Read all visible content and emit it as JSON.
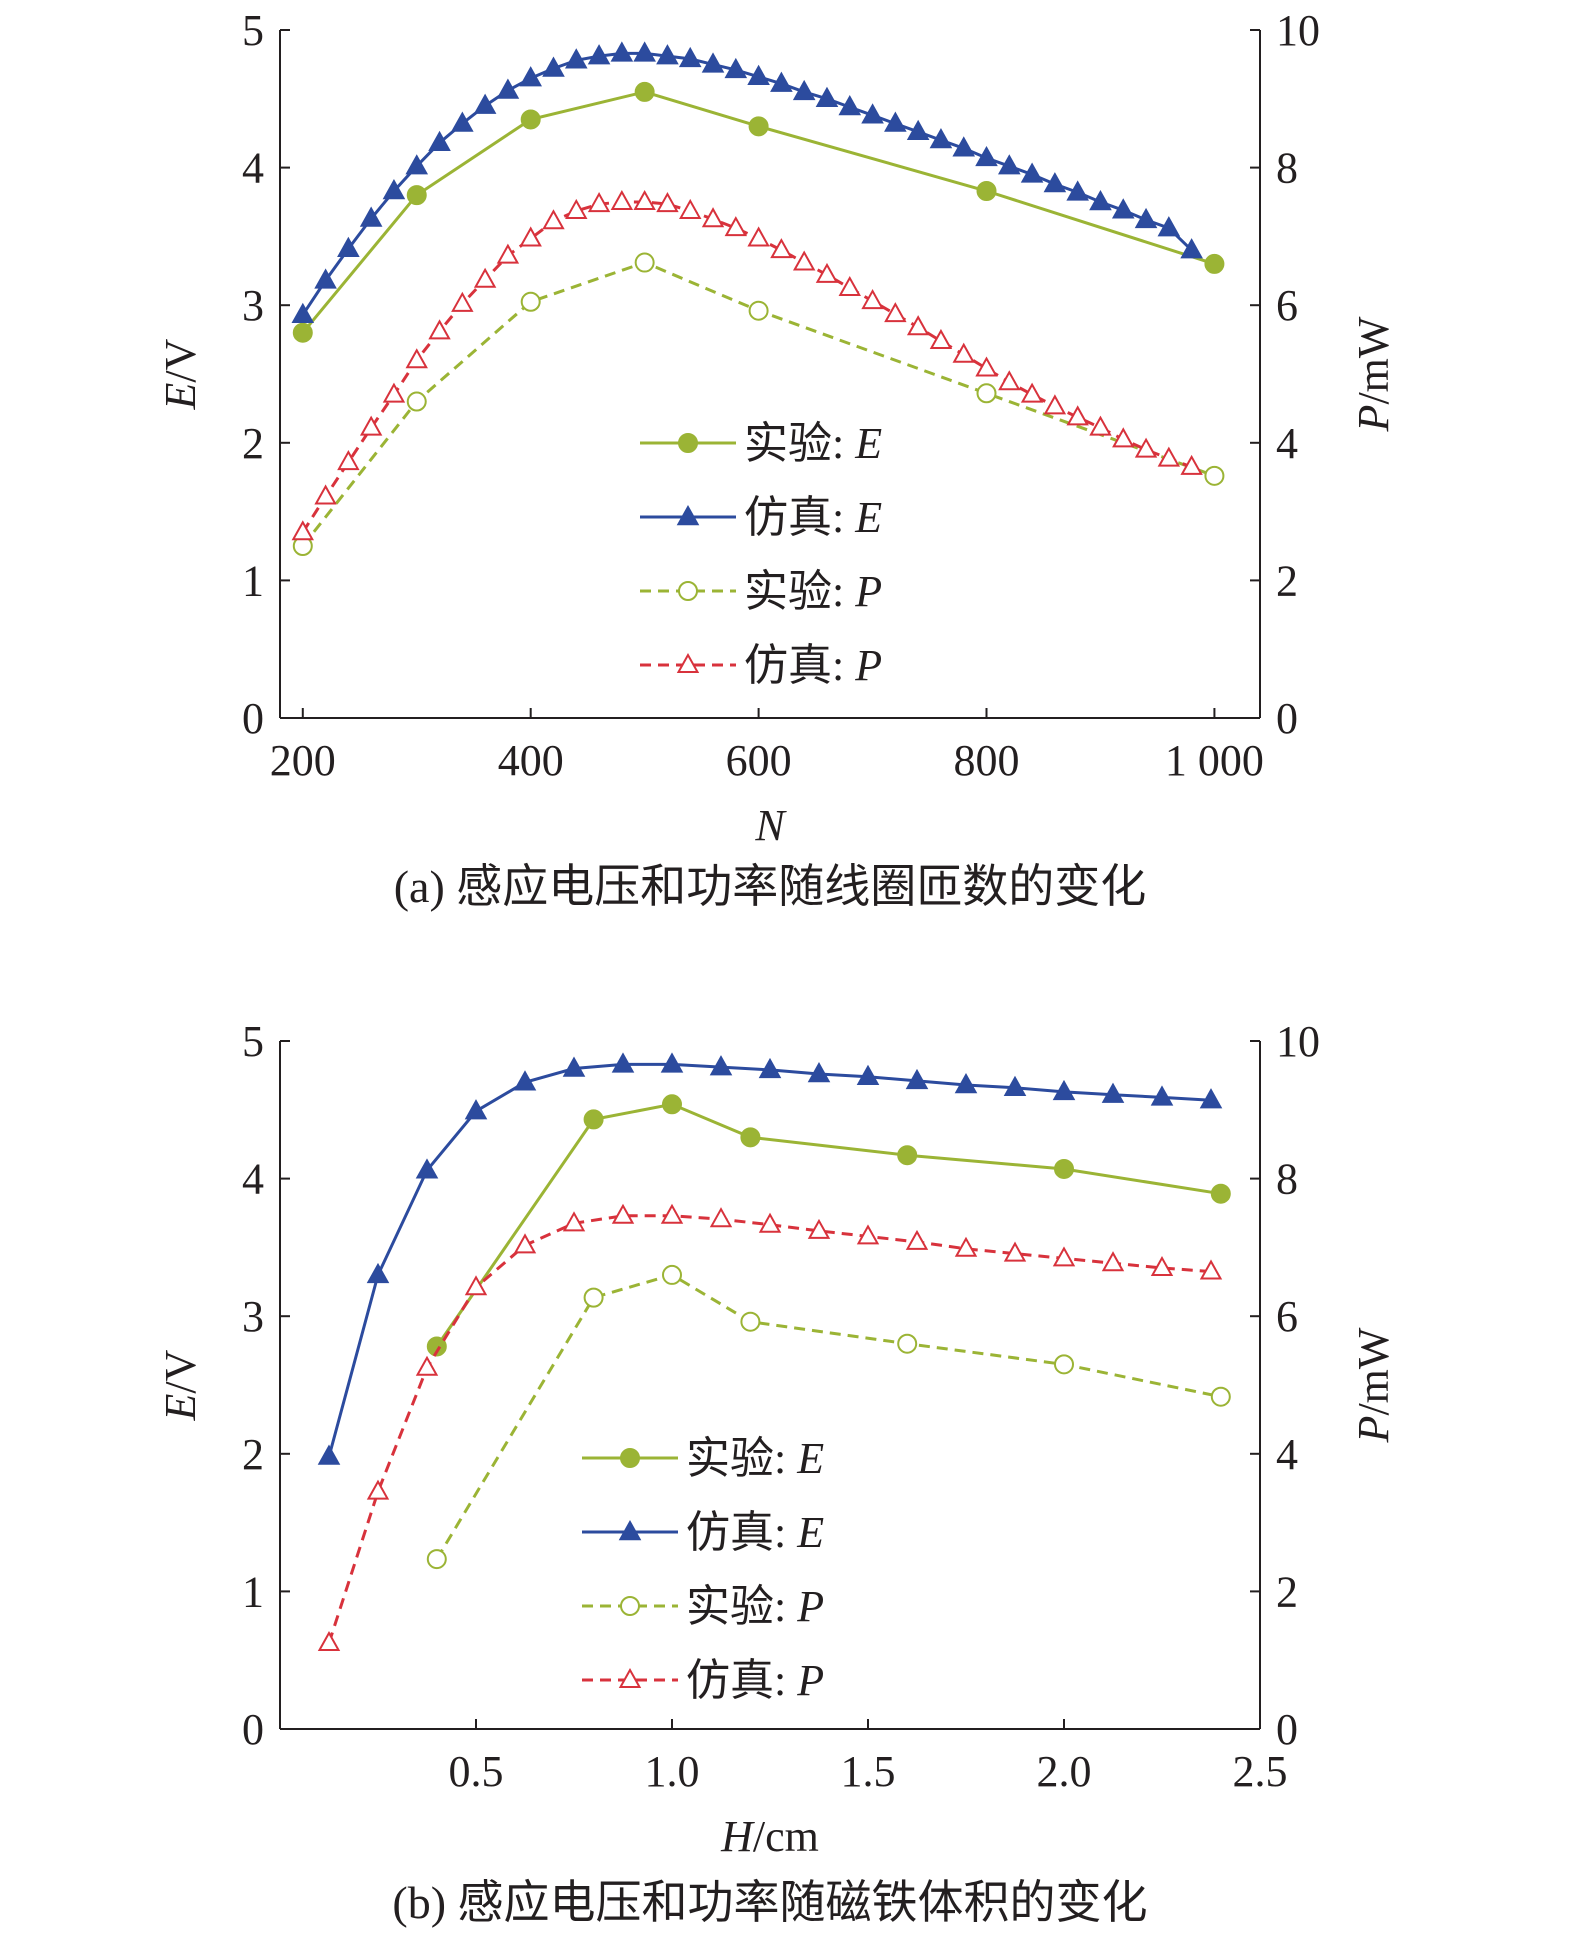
{
  "colors": {
    "exp_E": "#9bb435",
    "sim_E": "#2c4b9e",
    "exp_P": "#9bb435",
    "sim_P": "#d8323c",
    "axis": "#231f20"
  },
  "chart_data": [
    {
      "id": "a",
      "type": "line",
      "caption": "(a) 感应电压和功率随线圈匝数的变化",
      "xlabel": "N",
      "ylabel_left": "E/V",
      "ylabel_right": "P/mW",
      "xlim": [
        180,
        1040
      ],
      "ylim_left": [
        0,
        5
      ],
      "ylim_right": [
        0,
        10
      ],
      "x_ticks": [
        200,
        400,
        600,
        800,
        1000
      ],
      "x_tick_labels": [
        "200",
        "400",
        "600",
        "800",
        "1 000"
      ],
      "y_left_ticks": [
        0,
        1,
        2,
        3,
        4,
        5
      ],
      "y_left_tick_labels": [
        "0",
        "1",
        "2",
        "3",
        "4",
        "5"
      ],
      "y_right_ticks": [
        0,
        2,
        4,
        6,
        8,
        10
      ],
      "y_right_tick_labels": [
        "0",
        "2",
        "4",
        "6",
        "8",
        "10"
      ],
      "legend_position": "center",
      "legend": [
        {
          "series": "exp_E",
          "prefix": "实验: ",
          "var": "E"
        },
        {
          "series": "sim_E",
          "prefix": "仿真: ",
          "var": "E"
        },
        {
          "series": "exp_P",
          "prefix": "实验: ",
          "var": "P"
        },
        {
          "series": "sim_P",
          "prefix": "仿真: ",
          "var": "P"
        }
      ],
      "series": [
        {
          "key": "exp_E",
          "axis": "left",
          "marker": "circle",
          "filled": true,
          "dashed": false,
          "x": [
            200,
            300,
            400,
            500,
            600,
            800,
            1000
          ],
          "y": [
            2.8,
            3.8,
            4.35,
            4.55,
            4.3,
            3.83,
            3.3
          ]
        },
        {
          "key": "sim_E",
          "axis": "left",
          "marker": "triangle",
          "filled": true,
          "dashed": false,
          "x": [
            200,
            220,
            240,
            260,
            280,
            300,
            320,
            340,
            360,
            380,
            400,
            420,
            440,
            460,
            480,
            500,
            520,
            540,
            560,
            580,
            600,
            620,
            640,
            660,
            680,
            700,
            720,
            740,
            760,
            780,
            800,
            820,
            840,
            860,
            880,
            900,
            920,
            940,
            960,
            980
          ],
          "y": [
            2.93,
            3.18,
            3.41,
            3.63,
            3.83,
            4.01,
            4.18,
            4.32,
            4.45,
            4.56,
            4.65,
            4.72,
            4.78,
            4.81,
            4.83,
            4.83,
            4.81,
            4.79,
            4.75,
            4.71,
            4.66,
            4.61,
            4.55,
            4.5,
            4.44,
            4.38,
            4.32,
            4.26,
            4.2,
            4.14,
            4.07,
            4.01,
            3.95,
            3.88,
            3.82,
            3.75,
            3.69,
            3.62,
            3.56,
            3.4
          ]
        },
        {
          "key": "exp_P",
          "axis": "right",
          "marker": "circle",
          "filled": false,
          "dashed": true,
          "x": [
            200,
            300,
            400,
            500,
            600,
            800,
            1000
          ],
          "y": [
            2.5,
            4.6,
            6.05,
            6.62,
            5.92,
            4.72,
            3.52
          ]
        },
        {
          "key": "sim_P",
          "axis": "right",
          "marker": "triangle",
          "filled": false,
          "dashed": true,
          "x": [
            200,
            220,
            240,
            260,
            280,
            300,
            320,
            340,
            360,
            380,
            400,
            420,
            440,
            460,
            480,
            500,
            520,
            540,
            560,
            580,
            600,
            620,
            640,
            660,
            680,
            700,
            720,
            740,
            760,
            780,
            800,
            820,
            840,
            860,
            880,
            900,
            920,
            940,
            960,
            980
          ],
          "y": [
            2.7,
            3.22,
            3.72,
            4.22,
            4.7,
            5.2,
            5.62,
            6.02,
            6.37,
            6.72,
            6.97,
            7.22,
            7.37,
            7.47,
            7.5,
            7.5,
            7.47,
            7.37,
            7.25,
            7.12,
            6.97,
            6.8,
            6.62,
            6.44,
            6.25,
            6.06,
            5.87,
            5.68,
            5.48,
            5.28,
            5.08,
            4.88,
            4.7,
            4.53,
            4.37,
            4.22,
            4.05,
            3.9,
            3.77,
            3.65
          ]
        }
      ]
    },
    {
      "id": "b",
      "type": "line",
      "caption": "(b) 感应电压和功率随磁铁体积的变化",
      "xlabel": "H/cm",
      "ylabel_left": "E/V",
      "ylabel_right": "P/mW",
      "xlim": [
        0.0,
        2.5
      ],
      "ylim_left": [
        0,
        5
      ],
      "ylim_right": [
        0,
        10
      ],
      "x_ticks": [
        0.5,
        1.0,
        1.5,
        2.0,
        2.5
      ],
      "x_tick_labels": [
        "0.5",
        "1.0",
        "1.5",
        "2.0",
        "2.5"
      ],
      "y_left_ticks": [
        0,
        1,
        2,
        3,
        4,
        5
      ],
      "y_left_tick_labels": [
        "0",
        "1",
        "2",
        "3",
        "4",
        "5"
      ],
      "y_right_ticks": [
        0,
        2,
        4,
        6,
        8,
        10
      ],
      "y_right_tick_labels": [
        "0",
        "2",
        "4",
        "6",
        "8",
        "10"
      ],
      "legend_position": "bottom-center",
      "legend": [
        {
          "series": "exp_E",
          "prefix": "实验: ",
          "var": "E"
        },
        {
          "series": "sim_E",
          "prefix": "仿真: ",
          "var": "E"
        },
        {
          "series": "exp_P",
          "prefix": "实验: ",
          "var": "P"
        },
        {
          "series": "sim_P",
          "prefix": "仿真: ",
          "var": "P"
        }
      ],
      "series": [
        {
          "key": "exp_E",
          "axis": "left",
          "marker": "circle",
          "filled": true,
          "dashed": false,
          "x": [
            0.4,
            0.8,
            1.0,
            1.2,
            1.6,
            2.0,
            2.4
          ],
          "y": [
            2.78,
            4.43,
            4.54,
            4.3,
            4.17,
            4.07,
            3.89
          ]
        },
        {
          "key": "sim_E",
          "axis": "left",
          "marker": "triangle",
          "filled": true,
          "dashed": false,
          "x": [
            0.125,
            0.25,
            0.375,
            0.5,
            0.625,
            0.75,
            0.875,
            1.0,
            1.125,
            1.25,
            1.375,
            1.5,
            1.625,
            1.75,
            1.875,
            2.0,
            2.125,
            2.25,
            2.375
          ],
          "y": [
            1.98,
            3.3,
            4.06,
            4.49,
            4.7,
            4.8,
            4.83,
            4.83,
            4.81,
            4.79,
            4.76,
            4.74,
            4.71,
            4.68,
            4.66,
            4.63,
            4.61,
            4.59,
            4.57
          ]
        },
        {
          "key": "exp_P",
          "axis": "right",
          "marker": "circle",
          "filled": false,
          "dashed": true,
          "x": [
            0.4,
            0.8,
            1.0,
            1.2,
            1.6,
            2.0,
            2.4
          ],
          "y": [
            2.47,
            6.27,
            6.6,
            5.92,
            5.6,
            5.3,
            4.83
          ]
        },
        {
          "key": "sim_P",
          "axis": "right",
          "marker": "triangle",
          "filled": false,
          "dashed": true,
          "x": [
            0.125,
            0.25,
            0.375,
            0.5,
            0.625,
            0.75,
            0.875,
            1.0,
            1.125,
            1.25,
            1.375,
            1.5,
            1.625,
            1.75,
            1.875,
            2.0,
            2.125,
            2.25,
            2.375
          ],
          "y": [
            1.25,
            3.45,
            5.25,
            6.42,
            7.03,
            7.35,
            7.46,
            7.46,
            7.41,
            7.33,
            7.24,
            7.16,
            7.08,
            6.98,
            6.91,
            6.84,
            6.77,
            6.7,
            6.65
          ]
        }
      ]
    }
  ]
}
